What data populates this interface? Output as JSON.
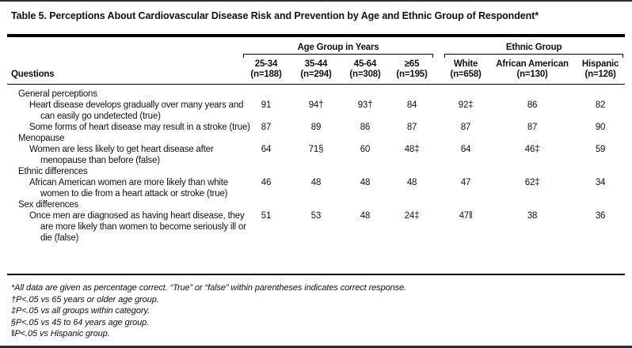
{
  "title": "Table 5. Perceptions About Cardiovascular Disease Risk and Prevention by Age and Ethnic Group of Respondent*",
  "header": {
    "questions_label": "Questions",
    "age_group_label": "Age Group in Years",
    "ethnic_group_label": "Ethnic Group",
    "age_columns": [
      {
        "label": "25-34",
        "n": "(n=188)"
      },
      {
        "label": "35-44",
        "n": "(n=294)"
      },
      {
        "label": "45-64",
        "n": "(n=308)"
      },
      {
        "label": "≥65",
        "n": "(n=195)"
      }
    ],
    "ethnic_columns": [
      {
        "label": "White",
        "n": "(n=658)"
      },
      {
        "label": "African American",
        "n": "(n=130)"
      },
      {
        "label": "Hispanic",
        "n": "(n=126)"
      }
    ]
  },
  "rows": [
    {
      "type": "section",
      "label": "General perceptions"
    },
    {
      "type": "question",
      "lines": [
        "Heart disease develops gradually over many years and",
        "can easily go undetected (true)"
      ],
      "values": [
        "91",
        "94†",
        "93†",
        "84",
        "92‡",
        "86",
        "82"
      ]
    },
    {
      "type": "question",
      "lines": [
        "Some forms of heart disease may result in a stroke (true)"
      ],
      "values": [
        "87",
        "89",
        "86",
        "87",
        "87",
        "87",
        "90"
      ]
    },
    {
      "type": "section",
      "label": "Menopause"
    },
    {
      "type": "question",
      "lines": [
        "Women are less likely to get heart disease after",
        "menopause than before (false)"
      ],
      "values": [
        "64",
        "71§",
        "60",
        "48‡",
        "64",
        "46‡",
        "59"
      ]
    },
    {
      "type": "section",
      "label": "Ethnic differences"
    },
    {
      "type": "question",
      "lines": [
        "African American women are more likely than white",
        "women to die from a heart attack or stroke (true)"
      ],
      "values": [
        "46",
        "48",
        "48",
        "48",
        "47",
        "62‡",
        "34"
      ]
    },
    {
      "type": "section",
      "label": "Sex differences"
    },
    {
      "type": "question",
      "lines": [
        "Once men are diagnosed as having heart disease, they",
        "are more likely than women to become seriously ill or",
        "die (false)"
      ],
      "values": [
        "51",
        "53",
        "48",
        "24‡",
        "47‖",
        "38",
        "36"
      ]
    }
  ],
  "footnotes": [
    "*All data are given as percentage correct. “True” or “false” within parentheses indicates correct response.",
    "†P<.05 vs 65 years or older age group.",
    "‡P<.05 vs all groups within category.",
    "§P<.05 vs 45 to 64 years age group.",
    "‖P<.05 vs Hispanic group."
  ],
  "colors": {
    "text": "#111111",
    "rule": "#000000",
    "frame": "#2e2e2e",
    "background": "#ffffff"
  }
}
